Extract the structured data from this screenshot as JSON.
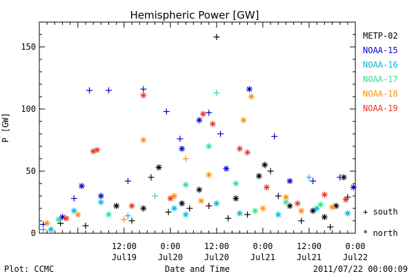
{
  "chart_data": {
    "type": "scatter",
    "title": "Hemispheric Power [GW]",
    "ylabel": "P [GW]",
    "xlabel": "Date and Time",
    "ylim": [
      0,
      170
    ],
    "xlim": [
      "2011-07-18 14:00",
      "2011-07-22 00:00"
    ],
    "yticks": [
      {
        "label": "0",
        "value": 0
      },
      {
        "label": "50",
        "value": 50
      },
      {
        "label": "100",
        "value": 100
      },
      {
        "label": "150",
        "value": 150
      }
    ],
    "xticks": [
      {
        "label": "12:00",
        "sub": "Jul19",
        "value": "2011-07-19 12:00"
      },
      {
        "label": "0:00",
        "sub": "Jul20",
        "value": "2011-07-20 00:00"
      },
      {
        "label": "12:00",
        "sub": "Jul20",
        "value": "2011-07-20 12:00"
      },
      {
        "label": "0:00",
        "sub": "Jul21",
        "value": "2011-07-21 00:00"
      },
      {
        "label": "12:00",
        "sub": "Jul21",
        "value": "2011-07-21 12:00"
      },
      {
        "label": "0:00",
        "sub": "Jul22",
        "value": "2011-07-22 00:00"
      }
    ],
    "markers": {
      "south": "+ south",
      "north": "* north"
    },
    "series": [
      {
        "name": "METP-02",
        "color": "#000000",
        "points": [
          {
            "x": "2011-07-18 19:30",
            "y": 8,
            "m": "+"
          },
          {
            "x": "2011-07-19 02:00",
            "y": 6,
            "m": "+"
          },
          {
            "x": "2011-07-19 10:00",
            "y": 22,
            "m": "*"
          },
          {
            "x": "2011-07-19 14:00",
            "y": 10,
            "m": "+"
          },
          {
            "x": "2011-07-19 17:00",
            "y": 20,
            "m": "*"
          },
          {
            "x": "2011-07-19 19:00",
            "y": 45,
            "m": "+"
          },
          {
            "x": "2011-07-19 21:00",
            "y": 53,
            "m": "*"
          },
          {
            "x": "2011-07-19 23:30",
            "y": 17,
            "m": "+"
          },
          {
            "x": "2011-07-20 03:00",
            "y": 24,
            "m": "*"
          },
          {
            "x": "2011-07-20 05:00",
            "y": 20,
            "m": "+"
          },
          {
            "x": "2011-07-20 07:30",
            "y": 35,
            "m": "*"
          },
          {
            "x": "2011-07-20 10:00",
            "y": 22,
            "m": "+"
          },
          {
            "x": "2011-07-20 12:00",
            "y": 158,
            "m": "+"
          },
          {
            "x": "2011-07-20 15:00",
            "y": 12,
            "m": "+"
          },
          {
            "x": "2011-07-20 17:00",
            "y": 28,
            "m": "*"
          },
          {
            "x": "2011-07-20 20:00",
            "y": 15,
            "m": "+"
          },
          {
            "x": "2011-07-20 23:00",
            "y": 46,
            "m": "*"
          },
          {
            "x": "2011-07-21 00:30",
            "y": 55,
            "m": "*"
          },
          {
            "x": "2011-07-21 02:00",
            "y": 50,
            "m": "+"
          },
          {
            "x": "2011-07-21 04:00",
            "y": 30,
            "m": "+"
          },
          {
            "x": "2011-07-21 07:00",
            "y": 22,
            "m": "*"
          },
          {
            "x": "2011-07-21 10:00",
            "y": 10,
            "m": "+"
          },
          {
            "x": "2011-07-21 13:00",
            "y": 18,
            "m": "*"
          },
          {
            "x": "2011-07-21 16:00",
            "y": 13,
            "m": "*"
          },
          {
            "x": "2011-07-21 17:30",
            "y": 5,
            "m": "+"
          },
          {
            "x": "2011-07-21 19:00",
            "y": 22,
            "m": "*"
          },
          {
            "x": "2011-07-21 21:00",
            "y": 45,
            "m": "*"
          },
          {
            "x": "2011-07-21 22:00",
            "y": 29,
            "m": "+"
          }
        ]
      },
      {
        "name": "NOAA-15",
        "color": "#0000cc",
        "points": [
          {
            "x": "2011-07-18 15:00",
            "y": 7,
            "m": "+"
          },
          {
            "x": "2011-07-18 20:00",
            "y": 13,
            "m": "*"
          },
          {
            "x": "2011-07-18 23:00",
            "y": 28,
            "m": "+"
          },
          {
            "x": "2011-07-19 01:00",
            "y": 38,
            "m": "*"
          },
          {
            "x": "2011-07-19 03:00",
            "y": 115,
            "m": "+"
          },
          {
            "x": "2011-07-19 06:00",
            "y": 30,
            "m": "*"
          },
          {
            "x": "2011-07-19 08:00",
            "y": 115,
            "m": "+"
          },
          {
            "x": "2011-07-19 13:00",
            "y": 42,
            "m": "+"
          },
          {
            "x": "2011-07-19 17:00",
            "y": 116,
            "m": "+"
          },
          {
            "x": "2011-07-19 23:00",
            "y": 98,
            "m": "+"
          },
          {
            "x": "2011-07-20 02:30",
            "y": 76,
            "m": "+"
          },
          {
            "x": "2011-07-20 03:00",
            "y": 68,
            "m": "*"
          },
          {
            "x": "2011-07-20 07:30",
            "y": 91,
            "m": "*"
          },
          {
            "x": "2011-07-20 10:00",
            "y": 97,
            "m": "+"
          },
          {
            "x": "2011-07-20 13:00",
            "y": 80,
            "m": "+"
          },
          {
            "x": "2011-07-20 14:30",
            "y": 52,
            "m": "*"
          },
          {
            "x": "2011-07-20 20:30",
            "y": 116,
            "m": "*"
          },
          {
            "x": "2011-07-21 03:00",
            "y": 78,
            "m": "+"
          },
          {
            "x": "2011-07-21 07:00",
            "y": 42,
            "m": "*"
          },
          {
            "x": "2011-07-21 13:00",
            "y": 42,
            "m": "+"
          },
          {
            "x": "2011-07-21 20:00",
            "y": 45,
            "m": "+"
          },
          {
            "x": "2011-07-21 23:30",
            "y": 37,
            "m": "*"
          }
        ]
      },
      {
        "name": "NOAA-16",
        "color": "#00b4e6",
        "points": [
          {
            "x": "2011-07-18 15:00",
            "y": 3,
            "m": "+"
          },
          {
            "x": "2011-07-18 17:00",
            "y": 3,
            "m": "*"
          },
          {
            "x": "2011-07-18 23:00",
            "y": 18,
            "m": "*"
          },
          {
            "x": "2011-07-19 06:00",
            "y": 25,
            "m": "*"
          },
          {
            "x": "2011-07-19 13:00",
            "y": 14,
            "m": "+"
          },
          {
            "x": "2011-07-20 01:00",
            "y": 20,
            "m": "*"
          },
          {
            "x": "2011-07-20 04:00",
            "y": 15,
            "m": "*"
          },
          {
            "x": "2011-07-20 12:00",
            "y": 24,
            "m": "*"
          },
          {
            "x": "2011-07-20 18:00",
            "y": 16,
            "m": "*"
          },
          {
            "x": "2011-07-21 04:00",
            "y": 15,
            "m": "*"
          },
          {
            "x": "2011-07-21 12:00",
            "y": 45,
            "m": "+"
          },
          {
            "x": "2011-07-21 14:00",
            "y": 20,
            "m": "*"
          },
          {
            "x": "2011-07-21 22:00",
            "y": 16,
            "m": "*"
          }
        ]
      },
      {
        "name": "NOAA-17",
        "color": "#2be08a",
        "points": [
          {
            "x": "2011-07-18 19:00",
            "y": 11,
            "m": "*"
          },
          {
            "x": "2011-07-19 08:00",
            "y": 15,
            "m": "*"
          },
          {
            "x": "2011-07-19 20:00",
            "y": 30,
            "m": "+"
          },
          {
            "x": "2011-07-20 04:00",
            "y": 39,
            "m": "*"
          },
          {
            "x": "2011-07-20 10:00",
            "y": 70,
            "m": "*"
          },
          {
            "x": "2011-07-20 12:00",
            "y": 113,
            "m": "+"
          },
          {
            "x": "2011-07-20 17:00",
            "y": 40,
            "m": "*"
          },
          {
            "x": "2011-07-20 22:00",
            "y": 18,
            "m": "*"
          },
          {
            "x": "2011-07-21 06:00",
            "y": 25,
            "m": "*"
          },
          {
            "x": "2011-07-21 15:00",
            "y": 23,
            "m": "*"
          }
        ]
      },
      {
        "name": "NOAA-18",
        "color": "#ff8c00",
        "points": [
          {
            "x": "2011-07-18 16:00",
            "y": 8,
            "m": "*"
          },
          {
            "x": "2011-07-19 00:00",
            "y": 15,
            "m": "*"
          },
          {
            "x": "2011-07-19 12:00",
            "y": 11,
            "m": "+"
          },
          {
            "x": "2011-07-19 17:00",
            "y": 75,
            "m": "*"
          },
          {
            "x": "2011-07-20 01:00",
            "y": 30,
            "m": "*"
          },
          {
            "x": "2011-07-20 04:00",
            "y": 60,
            "m": "+"
          },
          {
            "x": "2011-07-20 08:00",
            "y": 26,
            "m": "*"
          },
          {
            "x": "2011-07-20 10:00",
            "y": 47,
            "m": "*"
          },
          {
            "x": "2011-07-20 19:00",
            "y": 91,
            "m": "*"
          },
          {
            "x": "2011-07-20 21:00",
            "y": 110,
            "m": "*"
          },
          {
            "x": "2011-07-21 00:00",
            "y": 20,
            "m": "*"
          },
          {
            "x": "2011-07-21 06:00",
            "y": 29,
            "m": "*"
          },
          {
            "x": "2011-07-21 10:00",
            "y": 18,
            "m": "*"
          },
          {
            "x": "2011-07-21 18:00",
            "y": 21,
            "m": "*"
          }
        ]
      },
      {
        "name": "NOAA-19",
        "color": "#e8321e",
        "points": [
          {
            "x": "2011-07-18 21:00",
            "y": 12,
            "m": "*"
          },
          {
            "x": "2011-07-19 04:00",
            "y": 66,
            "m": "*"
          },
          {
            "x": "2011-07-19 05:00",
            "y": 67,
            "m": "*"
          },
          {
            "x": "2011-07-19 14:00",
            "y": 22,
            "m": "*"
          },
          {
            "x": "2011-07-19 17:00",
            "y": 111,
            "m": "*"
          },
          {
            "x": "2011-07-20 00:00",
            "y": 28,
            "m": "*"
          },
          {
            "x": "2011-07-20 08:30",
            "y": 96,
            "m": "*"
          },
          {
            "x": "2011-07-20 11:00",
            "y": 88,
            "m": "*"
          },
          {
            "x": "2011-07-20 18:00",
            "y": 68,
            "m": "*"
          },
          {
            "x": "2011-07-20 20:00",
            "y": 65,
            "m": "*"
          },
          {
            "x": "2011-07-21 01:00",
            "y": 37,
            "m": "*"
          },
          {
            "x": "2011-07-21 09:00",
            "y": 24,
            "m": "*"
          },
          {
            "x": "2011-07-21 16:00",
            "y": 31,
            "m": "*"
          },
          {
            "x": "2011-07-21 21:30",
            "y": 27,
            "m": "*"
          }
        ]
      }
    ]
  },
  "footer": {
    "left": "Plot: CCMC",
    "center": "Date and Time",
    "right": "2011/07/22 00:00:09"
  }
}
